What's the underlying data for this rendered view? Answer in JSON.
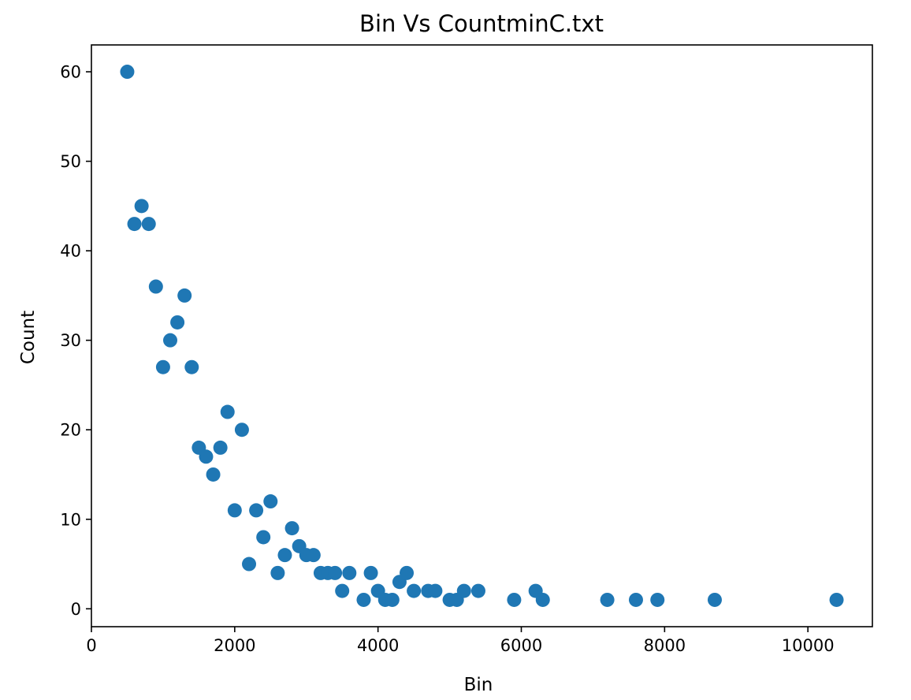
{
  "chart_data": {
    "type": "scatter",
    "title": "Bin Vs CountminC.txt",
    "xlabel": "Bin",
    "ylabel": "Count",
    "xlim": [
      0,
      10900
    ],
    "ylim": [
      -2,
      63
    ],
    "xticks": [
      0,
      2000,
      4000,
      6000,
      8000,
      10000
    ],
    "yticks": [
      0,
      10,
      20,
      30,
      40,
      50,
      60
    ],
    "grid": false,
    "marker_color": "#1f77b4",
    "series": [
      {
        "x": [
          500,
          600,
          700,
          800,
          900,
          1000,
          1100,
          1200,
          1300,
          1400,
          1500,
          1600,
          1700,
          1800,
          1900,
          2000,
          2100,
          2200,
          2300,
          2400,
          2500,
          2600,
          2700,
          2800,
          2900,
          3000,
          3100,
          3200,
          3300,
          3400,
          3500,
          3600,
          3800,
          3900,
          4000,
          4100,
          4200,
          4300,
          4400,
          4500,
          4700,
          4800,
          5000,
          5100,
          5200,
          5400,
          5900,
          6200,
          6300,
          7200,
          7600,
          7900,
          8700,
          10400
        ],
        "y": [
          60,
          43,
          45,
          43,
          36,
          27,
          30,
          32,
          35,
          27,
          18,
          17,
          15,
          18,
          22,
          11,
          20,
          5,
          11,
          8,
          12,
          4,
          6,
          9,
          7,
          6,
          6,
          4,
          4,
          4,
          2,
          4,
          1,
          4,
          2,
          1,
          1,
          3,
          4,
          2,
          2,
          2,
          1,
          1,
          2,
          2,
          1,
          2,
          1,
          1,
          1,
          1,
          1,
          1
        ]
      }
    ]
  }
}
